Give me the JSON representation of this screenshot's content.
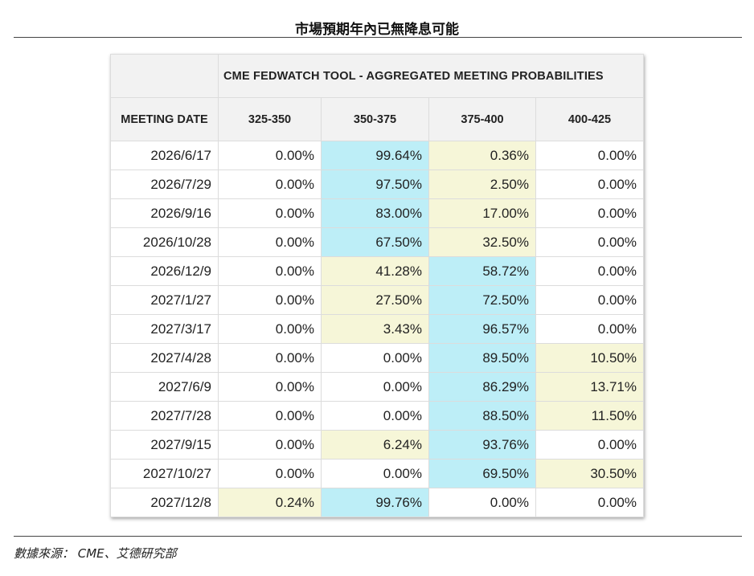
{
  "page": {
    "title": "市場預期年內已無降息可能",
    "source": "數據來源： CME、艾德研究部"
  },
  "table": {
    "super_header": "CME FEDWATCH TOOL - AGGREGATED MEETING PROBABILITIES",
    "date_header": "MEETING DATE",
    "columns": [
      "325-350",
      "350-375",
      "375-400",
      "400-425"
    ],
    "highlight_colors": {
      "highest": "#bdeef7",
      "second": "#f6f6d8",
      "none": "#ffffff"
    }
  },
  "chart_data": {
    "type": "table",
    "title": "CME FEDWATCH TOOL - AGGREGATED MEETING PROBABILITIES",
    "columns": [
      "MEETING DATE",
      "325-350",
      "350-375",
      "375-400",
      "400-425"
    ],
    "rows": [
      {
        "date": "2026/6/17",
        "values": [
          "0.00%",
          "99.64%",
          "0.36%",
          "0.00%"
        ],
        "highlight": [
          "none",
          "highest",
          "second",
          "none"
        ]
      },
      {
        "date": "2026/7/29",
        "values": [
          "0.00%",
          "97.50%",
          "2.50%",
          "0.00%"
        ],
        "highlight": [
          "none",
          "highest",
          "second",
          "none"
        ]
      },
      {
        "date": "2026/9/16",
        "values": [
          "0.00%",
          "83.00%",
          "17.00%",
          "0.00%"
        ],
        "highlight": [
          "none",
          "highest",
          "second",
          "none"
        ]
      },
      {
        "date": "2026/10/28",
        "values": [
          "0.00%",
          "67.50%",
          "32.50%",
          "0.00%"
        ],
        "highlight": [
          "none",
          "highest",
          "second",
          "none"
        ]
      },
      {
        "date": "2026/12/9",
        "values": [
          "0.00%",
          "41.28%",
          "58.72%",
          "0.00%"
        ],
        "highlight": [
          "none",
          "second",
          "highest",
          "none"
        ]
      },
      {
        "date": "2027/1/27",
        "values": [
          "0.00%",
          "27.50%",
          "72.50%",
          "0.00%"
        ],
        "highlight": [
          "none",
          "second",
          "highest",
          "none"
        ]
      },
      {
        "date": "2027/3/17",
        "values": [
          "0.00%",
          "3.43%",
          "96.57%",
          "0.00%"
        ],
        "highlight": [
          "none",
          "second",
          "highest",
          "none"
        ]
      },
      {
        "date": "2027/4/28",
        "values": [
          "0.00%",
          "0.00%",
          "89.50%",
          "10.50%"
        ],
        "highlight": [
          "none",
          "none",
          "highest",
          "second"
        ]
      },
      {
        "date": "2027/6/9",
        "values": [
          "0.00%",
          "0.00%",
          "86.29%",
          "13.71%"
        ],
        "highlight": [
          "none",
          "none",
          "highest",
          "second"
        ]
      },
      {
        "date": "2027/7/28",
        "values": [
          "0.00%",
          "0.00%",
          "88.50%",
          "11.50%"
        ],
        "highlight": [
          "none",
          "none",
          "highest",
          "second"
        ]
      },
      {
        "date": "2027/9/15",
        "values": [
          "0.00%",
          "6.24%",
          "93.76%",
          "0.00%"
        ],
        "highlight": [
          "none",
          "second",
          "highest",
          "none"
        ]
      },
      {
        "date": "2027/10/27",
        "values": [
          "0.00%",
          "0.00%",
          "69.50%",
          "30.50%"
        ],
        "highlight": [
          "none",
          "none",
          "highest",
          "second"
        ]
      },
      {
        "date": "2027/12/8",
        "values": [
          "0.24%",
          "99.76%",
          "0.00%",
          "0.00%"
        ],
        "highlight": [
          "second",
          "highest",
          "none",
          "none"
        ]
      }
    ]
  }
}
